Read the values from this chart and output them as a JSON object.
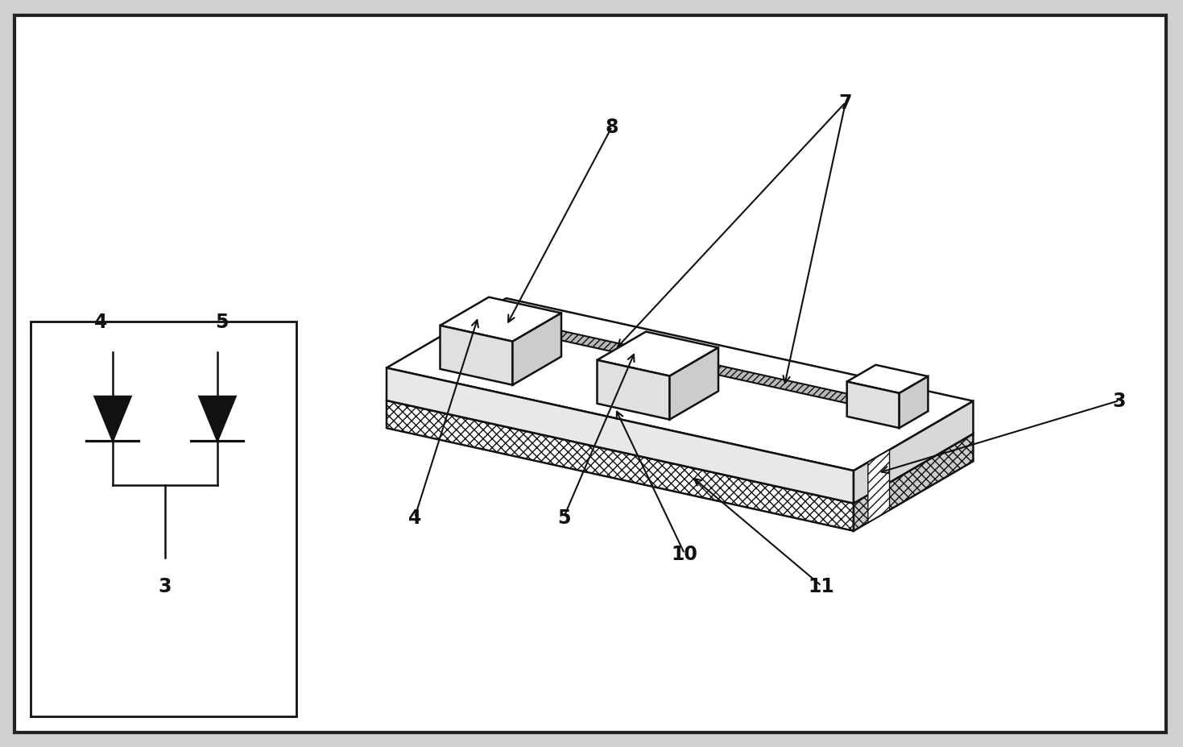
{
  "bg_color": "#ffffff",
  "outer_border_color": "#222222",
  "line_color": "#111111",
  "label_fontsize": 17,
  "label_fontweight": "bold",
  "fig_bg": "#d0d0d0"
}
